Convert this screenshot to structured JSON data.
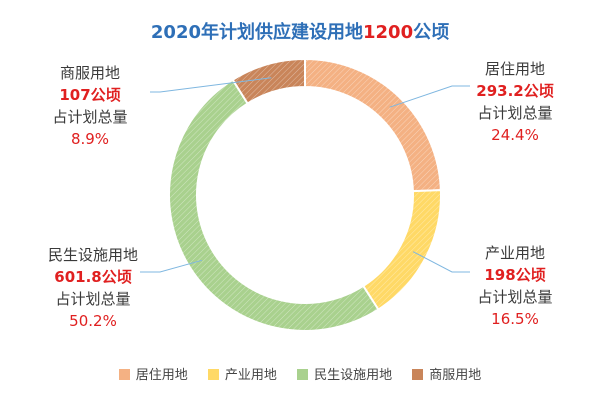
{
  "chart_data": {
    "type": "pie",
    "title": "2020年计划供应建设用地1200公顷",
    "title_parts": {
      "prefix": "2020年计划供应建设用地",
      "highlight": "1200",
      "suffix": "公顷"
    },
    "slices": [
      {
        "name": "居住用地",
        "value": 293.2,
        "value_label": "293.2公顷",
        "share_caption": "占计划总量",
        "percent_label": "24.4%",
        "color": "#f4b183"
      },
      {
        "name": "产业用地",
        "value": 198,
        "value_label": "198公顷",
        "share_caption": "占计划总量",
        "percent_label": "16.5%",
        "color": "#ffd966"
      },
      {
        "name": "民生设施用地",
        "value": 601.8,
        "value_label": "601.8公顷",
        "share_caption": "占计划总量",
        "percent_label": "50.2%",
        "color": "#a9d18e"
      },
      {
        "name": "商服用地",
        "value": 107,
        "value_label": "107公顷",
        "share_caption": "占计划总量",
        "percent_label": "8.9%",
        "color": "#c9855a"
      }
    ],
    "legend_position": "bottom"
  }
}
